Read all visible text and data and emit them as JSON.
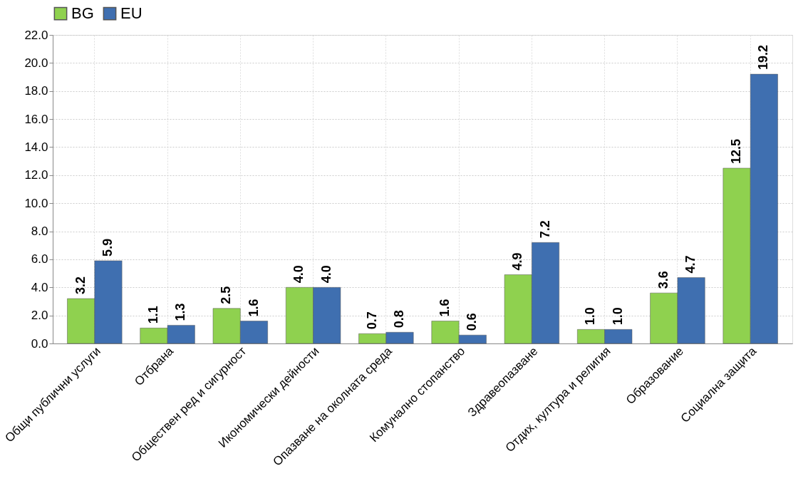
{
  "chart_data": {
    "type": "bar",
    "categories": [
      "Общи публични услуги",
      "Отбрана",
      "Обществен ред и сигурност",
      "Икономически дейности",
      "Опазване на околната среда",
      "Комунално стопанство",
      "Здравеопазване",
      "Отдих, култура и религия",
      "Образование",
      "Социална защита"
    ],
    "series": [
      {
        "name": "BG",
        "color": "#8fd14f",
        "values": [
          3.2,
          1.1,
          2.5,
          4.0,
          0.7,
          1.6,
          4.9,
          1.0,
          3.6,
          12.5
        ],
        "value_labels": [
          "3.2",
          "1.1",
          "2.5",
          "4.0",
          "0.7",
          "1.6",
          "4.9",
          "1.0",
          "3.6",
          "12.5"
        ]
      },
      {
        "name": "EU",
        "color": "#3f6fb0",
        "values": [
          5.9,
          1.3,
          1.6,
          4.0,
          0.8,
          0.6,
          7.2,
          1.0,
          4.7,
          19.2
        ],
        "value_labels": [
          "5.9",
          "1.3",
          "1.6",
          "4.0",
          "0.8",
          "0.6",
          "7.2",
          "1.0",
          "4.7",
          "19.2"
        ]
      }
    ],
    "ylim": [
      0,
      22
    ],
    "yticks": [
      {
        "value": 0,
        "label": "0.0"
      },
      {
        "value": 2,
        "label": "2.0"
      },
      {
        "value": 4,
        "label": "4.0"
      },
      {
        "value": 6,
        "label": "6.0"
      },
      {
        "value": 8,
        "label": "8.0"
      },
      {
        "value": 10,
        "label": "10.0"
      },
      {
        "value": 12,
        "label": "12.0"
      },
      {
        "value": 14,
        "label": "14.0"
      },
      {
        "value": 16,
        "label": "16.0"
      },
      {
        "value": 18,
        "label": "18.0"
      },
      {
        "value": 20,
        "label": "20.0"
      },
      {
        "value": 22,
        "label": "22.0"
      }
    ],
    "grid": true,
    "legend": "top"
  }
}
